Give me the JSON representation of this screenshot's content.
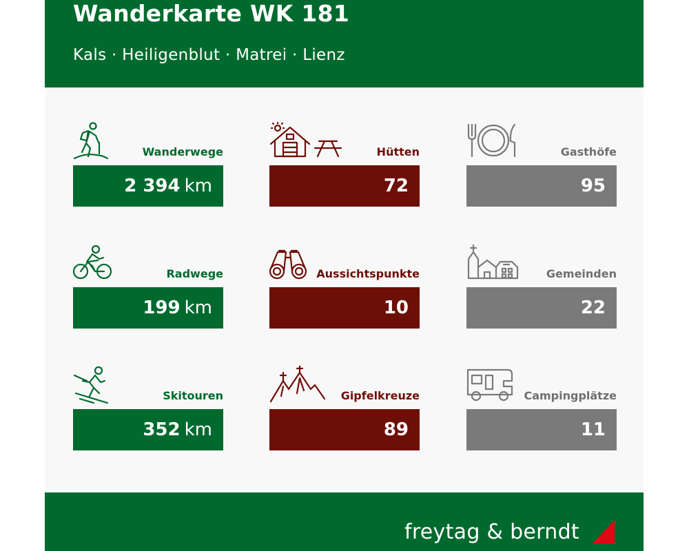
{
  "header": {
    "title": "Wanderkarte WK 181",
    "subtitle": "Kals · Heiligenblut · Matrei · Lienz"
  },
  "cards": [
    {
      "label": "Wanderwege",
      "value": "2 394",
      "unit": "km",
      "icon": "hiker-icon",
      "color": "#006a2e"
    },
    {
      "label": "Hütten",
      "value": "72",
      "unit": "",
      "icon": "hut-icon",
      "color": "#6e0f07"
    },
    {
      "label": "Gasthöfe",
      "value": "95",
      "unit": "",
      "icon": "plate-cutlery-icon",
      "color": "#7a7a7a"
    },
    {
      "label": "Radwege",
      "value": "199",
      "unit": "km",
      "icon": "cyclist-icon",
      "color": "#006a2e"
    },
    {
      "label": "Aussichtspunkte",
      "value": "10",
      "unit": "",
      "icon": "binoculars-icon",
      "color": "#6e0f07"
    },
    {
      "label": "Gemeinden",
      "value": "22",
      "unit": "",
      "icon": "village-icon",
      "color": "#7a7a7a"
    },
    {
      "label": "Skitouren",
      "value": "352",
      "unit": "km",
      "icon": "skier-icon",
      "color": "#006a2e"
    },
    {
      "label": "Gipfelkreuze",
      "value": "89",
      "unit": "",
      "icon": "summit-cross-icon",
      "color": "#6e0f07"
    },
    {
      "label": "Campingplätze",
      "value": "11",
      "unit": "",
      "icon": "camper-van-icon",
      "color": "#7a7a7a"
    }
  ],
  "footer": {
    "brand": "freytag & berndt",
    "accent_color": "#e30613"
  }
}
